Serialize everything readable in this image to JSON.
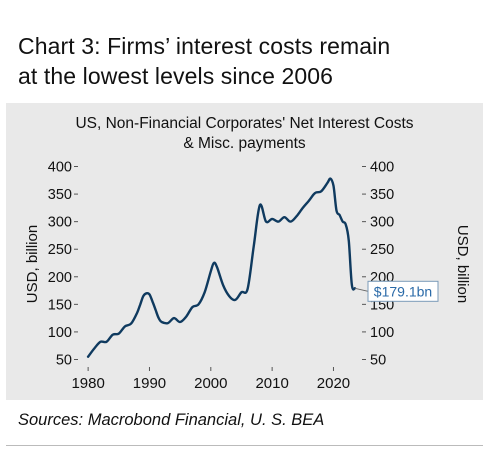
{
  "header": {
    "title_line1": "Chart 3: Firms’ interest costs remain",
    "title_line2": "at the lowest levels since 2006"
  },
  "footer": {
    "sources": "Sources: Macrobond Financial, U. S. BEA"
  },
  "chart_data": {
    "type": "line",
    "title_line1": "US, Non-Financial Corporates' Net Interest Costs",
    "title_line2": "& Misc. payments",
    "ylabel": "USD, billion",
    "ylabel_right": "USD, billion",
    "xlim": [
      1979,
      2024
    ],
    "ylim": [
      40,
      410
    ],
    "x_ticks": [
      1980,
      1990,
      2000,
      2010,
      2020
    ],
    "y_ticks": [
      50,
      100,
      150,
      200,
      250,
      300,
      350,
      400
    ],
    "grid": false,
    "line_color": "#0f3a5f",
    "end_label": "$179.1bn",
    "series": [
      {
        "x": [
          1980,
          1981,
          1982,
          1983,
          1984,
          1985,
          1986,
          1987,
          1988,
          1988.5,
          1989,
          1989.5,
          1990,
          1990.5,
          1991,
          1991.5,
          1992,
          1993,
          1994,
          1995,
          1996,
          1997,
          1998,
          1999,
          2000,
          2000.5,
          2001,
          2002,
          2003,
          2004,
          2005,
          2006,
          2007,
          2008,
          2009,
          2010,
          2011,
          2012,
          2013,
          2014,
          2015,
          2016,
          2017,
          2018,
          2019,
          2019.5,
          2020,
          2020.5,
          2021,
          2021.5,
          2022,
          2022.5,
          2023,
          2023.5
        ],
        "values": [
          55,
          70,
          82,
          82,
          95,
          97,
          110,
          115,
          135,
          150,
          165,
          170,
          168,
          155,
          140,
          125,
          118,
          116,
          125,
          118,
          128,
          145,
          150,
          172,
          210,
          225,
          218,
          185,
          165,
          158,
          172,
          178,
          255,
          330,
          300,
          305,
          300,
          308,
          300,
          310,
          325,
          338,
          352,
          355,
          370,
          378,
          365,
          320,
          312,
          300,
          295,
          265,
          185,
          179.1
        ]
      }
    ]
  }
}
